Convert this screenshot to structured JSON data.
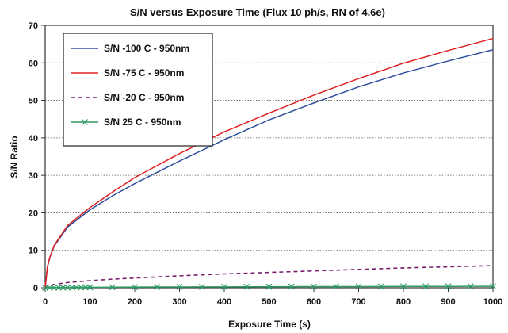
{
  "chart_data": {
    "type": "line",
    "title": "S/N versus Exposure Time (Flux 10 ph/s, RN of 4.6e)",
    "xlabel": "Exposure Time (s)",
    "ylabel": "S/N Ratio",
    "xlim": [
      0,
      1000
    ],
    "ylim": [
      0,
      70
    ],
    "x_ticks": [
      0,
      100,
      200,
      300,
      400,
      500,
      600,
      700,
      800,
      900,
      1000
    ],
    "y_ticks": [
      0,
      10,
      20,
      30,
      40,
      50,
      60,
      70
    ],
    "grid": "horizontal",
    "legend_position": "top-left",
    "series": [
      {
        "name": "S/N -100 C - 950nm",
        "color": "#2f4f9f",
        "style": "solid",
        "marker": "none",
        "x": [
          0,
          5,
          10,
          20,
          50,
          100,
          150,
          200,
          300,
          400,
          500,
          600,
          700,
          800,
          900,
          1000
        ],
        "y": [
          0,
          5.5,
          7.9,
          11.1,
          16.2,
          20.8,
          24.5,
          27.8,
          33.8,
          39.5,
          44.8,
          49.3,
          53.6,
          57.3,
          60.5,
          63.5
        ]
      },
      {
        "name": "S/N -75 C - 950nm",
        "color": "#e02020",
        "style": "solid",
        "marker": "none",
        "x": [
          0,
          5,
          10,
          20,
          50,
          100,
          150,
          200,
          300,
          400,
          500,
          600,
          700,
          800,
          900,
          1000
        ],
        "y": [
          0,
          5.6,
          8.0,
          11.3,
          16.6,
          21.4,
          25.5,
          29.4,
          35.8,
          41.6,
          46.6,
          51.4,
          55.8,
          59.9,
          63.3,
          66.5
        ]
      },
      {
        "name": "S/N -20 C - 950nm",
        "color": "#7a1f6e",
        "style": "dashed",
        "marker": "none",
        "x": [
          0,
          5,
          10,
          20,
          50,
          100,
          150,
          200,
          300,
          400,
          500,
          600,
          700,
          800,
          900,
          1000
        ],
        "y": [
          0,
          0.5,
          0.7,
          0.9,
          1.4,
          1.9,
          2.3,
          2.6,
          3.2,
          3.7,
          4.1,
          4.5,
          4.9,
          5.3,
          5.6,
          5.9
        ]
      },
      {
        "name": "S/N 25 C - 950nm",
        "color": "#2e9a64",
        "style": "solid",
        "marker": "x",
        "x": [
          0,
          10,
          20,
          30,
          40,
          50,
          60,
          70,
          80,
          90,
          100,
          150,
          200,
          250,
          300,
          350,
          400,
          450,
          500,
          550,
          600,
          650,
          700,
          750,
          800,
          850,
          900,
          950,
          1000
        ],
        "y": [
          0,
          0.03,
          0.05,
          0.06,
          0.07,
          0.08,
          0.09,
          0.1,
          0.11,
          0.12,
          0.12,
          0.15,
          0.18,
          0.2,
          0.22,
          0.24,
          0.25,
          0.27,
          0.28,
          0.3,
          0.31,
          0.32,
          0.33,
          0.34,
          0.36,
          0.37,
          0.38,
          0.39,
          0.4
        ]
      }
    ]
  }
}
